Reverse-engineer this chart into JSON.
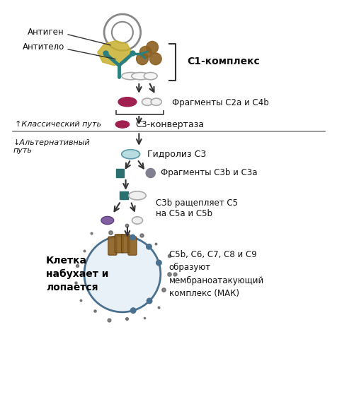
{
  "bg_color": "#ffffff",
  "fig_width": 4.77,
  "fig_height": 5.79,
  "dpi": 100,
  "labels": {
    "antigen": "Антиген",
    "antibody": "Антитело",
    "c1_complex": "С1-комплекс",
    "fragments_c2a_c4b": "Фрагменты С2а и С4b",
    "classical_path": "↑Классический путь",
    "c3_convertase": "С3-конвертаза",
    "alternative_path": "↓Альтернативный\nпуть",
    "hydrolysis": "Гидролиз С3",
    "fragments_c3b_c3a": "Фрагменты С3b и С3а",
    "c3b_cleaves": "С3b ращепляет С5\nна С5а и С5b",
    "cell_text": "Клетка\nнабухает и\nлопается",
    "mac_text": "С5b, С6, С7, С8 и С9\nобразуют\nмембраноатакующий\nкомплекс (МАК)"
  },
  "colors": {
    "arrow": "#333333",
    "c1q_yellow": "#c8b030",
    "c1q_teal": "#2a8080",
    "c1q_brown": "#8b6020",
    "capsule_red": "#a02050",
    "dot_teal": "#2a7070",
    "dot_gray": "#808090",
    "capsule_purple": "#7060a0",
    "capsule_outline": "#aaaaaa",
    "cell_outline": "#4a7090",
    "cell_fill": "#e8f0f8",
    "mac_color": "#8b6020",
    "text_main": "#111111",
    "text_bold": "#000000"
  }
}
